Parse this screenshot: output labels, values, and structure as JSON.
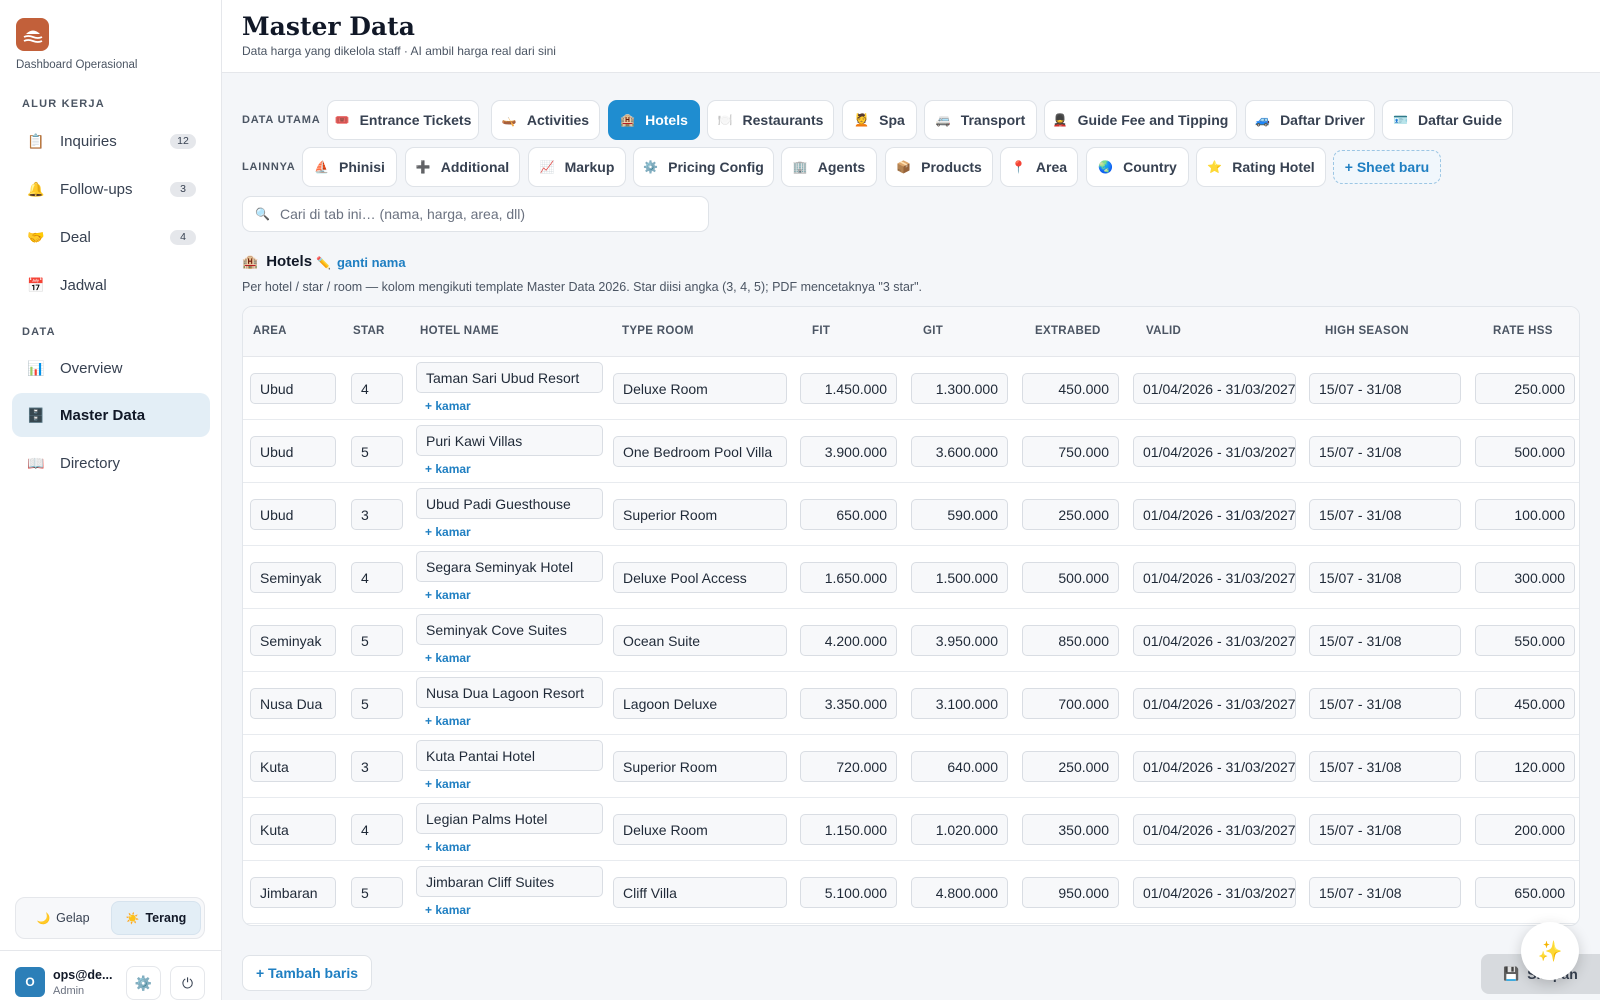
{
  "sidebar": {
    "brand_subtitle": "Dashboard Operasional",
    "sections": [
      {
        "title": "ALUR KERJA",
        "items": [
          {
            "label": "Inquiries",
            "icon": "clipboard-icon",
            "badge": "12"
          },
          {
            "label": "Follow-ups",
            "icon": "bell-icon",
            "badge": "3"
          },
          {
            "label": "Deal",
            "icon": "handshake-icon",
            "badge": "4"
          },
          {
            "label": "Jadwal",
            "icon": "calendar-icon"
          }
        ]
      },
      {
        "title": "DATA",
        "items": [
          {
            "label": "Overview",
            "icon": "bar-chart-icon"
          },
          {
            "label": "Master Data",
            "icon": "cabinet-icon",
            "active": true
          },
          {
            "label": "Directory",
            "icon": "book-icon"
          }
        ]
      }
    ],
    "theme": {
      "dark": "Gelap",
      "light": "Terang"
    },
    "user": {
      "initial": "O",
      "email": "ops@de...",
      "role": "Admin"
    }
  },
  "header": {
    "title": "Master Data",
    "subtitle": "Data harga yang dikelola staff · AI ambil harga real dari sini"
  },
  "tabs": {
    "main_label": "DATA UTAMA",
    "main": [
      {
        "label": "Entrance Tickets",
        "icon": "ticket-icon"
      },
      {
        "label": "Activities",
        "icon": "canoe-icon"
      },
      {
        "label": "Hotels",
        "icon": "hotel-icon",
        "active": true
      },
      {
        "label": "Restaurants",
        "icon": "cutlery-icon"
      },
      {
        "label": "Spa",
        "icon": "massage-icon"
      },
      {
        "label": "Transport",
        "icon": "bus-icon"
      },
      {
        "label": "Guide Fee and Tipping",
        "icon": "guide-icon"
      },
      {
        "label": "Daftar Driver",
        "icon": "car-icon"
      },
      {
        "label": "Daftar Guide",
        "icon": "id-card-icon"
      }
    ],
    "other_label": "LAINNYA",
    "other": [
      {
        "label": "Phinisi",
        "icon": "ship-icon"
      },
      {
        "label": "Additional",
        "icon": "plus-icon"
      },
      {
        "label": "Markup",
        "icon": "trend-chart-icon"
      },
      {
        "label": "Pricing Config",
        "icon": "gear-icon"
      },
      {
        "label": "Agents",
        "icon": "building-icon"
      },
      {
        "label": "Products",
        "icon": "package-icon"
      },
      {
        "label": "Area",
        "icon": "pin-icon"
      },
      {
        "label": "Country",
        "icon": "globe-icon"
      },
      {
        "label": "Rating Hotel",
        "icon": "star-icon"
      },
      {
        "label": "+ Sheet baru",
        "icon": ""
      }
    ]
  },
  "search": {
    "placeholder": "Cari di tab ini… (nama, harga, area, dll)"
  },
  "sheet": {
    "title": "Hotels",
    "rename": "ganti nama",
    "description": "Per hotel / star / room — kolom mengikuti template Master Data 2026. Star diisi angka (3, 4, 5); PDF mencetaknya \"3 star\"."
  },
  "table": {
    "columns": [
      "AREA",
      "STAR",
      "HOTEL NAME",
      "TYPE ROOM",
      "FIT",
      "GIT",
      "EXTRABED",
      "VALID",
      "HIGH SEASON",
      "RATE HSS"
    ],
    "add_room_label": "+ kamar",
    "rows": [
      {
        "area": "Ubud",
        "star": "4",
        "hotel": "Taman Sari Ubud Resort",
        "room": "Deluxe Room",
        "fit": "1.450.000",
        "git": "1.300.000",
        "extrabed": "450.000",
        "valid": "01/04/2026 - 31/03/2027",
        "high_season": "15/07 - 31/08",
        "rate_hss": "250.000"
      },
      {
        "area": "Ubud",
        "star": "5",
        "hotel": "Puri Kawi Villas",
        "room": "One Bedroom Pool Villa",
        "fit": "3.900.000",
        "git": "3.600.000",
        "extrabed": "750.000",
        "valid": "01/04/2026 - 31/03/2027",
        "high_season": "15/07 - 31/08",
        "rate_hss": "500.000"
      },
      {
        "area": "Ubud",
        "star": "3",
        "hotel": "Ubud Padi Guesthouse",
        "room": "Superior Room",
        "fit": "650.000",
        "git": "590.000",
        "extrabed": "250.000",
        "valid": "01/04/2026 - 31/03/2027",
        "high_season": "15/07 - 31/08",
        "rate_hss": "100.000"
      },
      {
        "area": "Seminyak",
        "star": "4",
        "hotel": "Segara Seminyak Hotel",
        "room": "Deluxe Pool Access",
        "fit": "1.650.000",
        "git": "1.500.000",
        "extrabed": "500.000",
        "valid": "01/04/2026 - 31/03/2027",
        "high_season": "15/07 - 31/08",
        "rate_hss": "300.000"
      },
      {
        "area": "Seminyak",
        "star": "5",
        "hotel": "Seminyak Cove Suites",
        "room": "Ocean Suite",
        "fit": "4.200.000",
        "git": "3.950.000",
        "extrabed": "850.000",
        "valid": "01/04/2026 - 31/03/2027",
        "high_season": "15/07 - 31/08",
        "rate_hss": "550.000"
      },
      {
        "area": "Nusa Dua",
        "star": "5",
        "hotel": "Nusa Dua Lagoon Resort",
        "room": "Lagoon Deluxe",
        "fit": "3.350.000",
        "git": "3.100.000",
        "extrabed": "700.000",
        "valid": "01/04/2026 - 31/03/2027",
        "high_season": "15/07 - 31/08",
        "rate_hss": "450.000"
      },
      {
        "area": "Kuta",
        "star": "3",
        "hotel": "Kuta Pantai Hotel",
        "room": "Superior Room",
        "fit": "720.000",
        "git": "640.000",
        "extrabed": "250.000",
        "valid": "01/04/2026 - 31/03/2027",
        "high_season": "15/07 - 31/08",
        "rate_hss": "120.000"
      },
      {
        "area": "Kuta",
        "star": "4",
        "hotel": "Legian Palms Hotel",
        "room": "Deluxe Room",
        "fit": "1.150.000",
        "git": "1.020.000",
        "extrabed": "350.000",
        "valid": "01/04/2026 - 31/03/2027",
        "high_season": "15/07 - 31/08",
        "rate_hss": "200.000"
      },
      {
        "area": "Jimbaran",
        "star": "5",
        "hotel": "Jimbaran Cliff Suites",
        "room": "Cliff Villa",
        "fit": "5.100.000",
        "git": "4.800.000",
        "extrabed": "950.000",
        "valid": "01/04/2026 - 31/03/2027",
        "high_season": "15/07 - 31/08",
        "rate_hss": "650.000"
      }
    ]
  },
  "actions": {
    "add_row": "+ Tambah baris",
    "save": "Simpan"
  },
  "colors": {
    "accent": "#1f8dd0",
    "brand": "#c2603a",
    "active_nav": "#e3eef6"
  }
}
